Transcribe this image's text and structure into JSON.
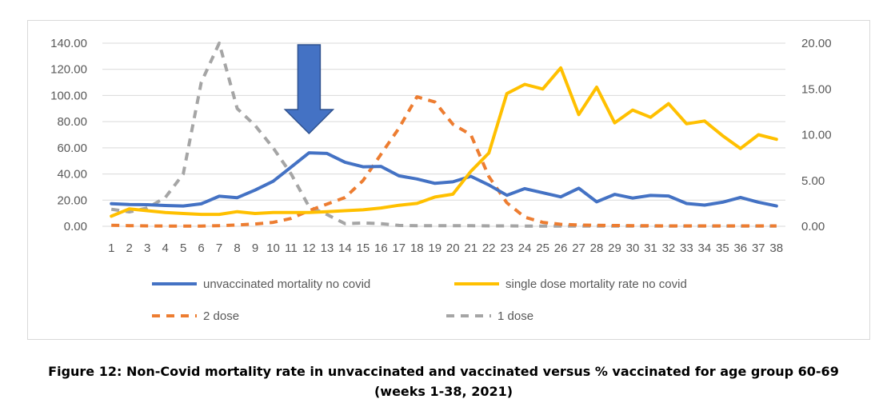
{
  "chart_data": {
    "type": "line",
    "x": [
      1,
      2,
      3,
      4,
      5,
      6,
      7,
      8,
      9,
      10,
      11,
      12,
      13,
      14,
      15,
      16,
      17,
      18,
      19,
      20,
      21,
      22,
      23,
      24,
      25,
      26,
      27,
      28,
      29,
      30,
      31,
      32,
      33,
      34,
      35,
      36,
      37,
      38
    ],
    "y_left_ticks": [
      "0.00",
      "20.00",
      "40.00",
      "60.00",
      "80.00",
      "100.00",
      "120.00",
      "140.00"
    ],
    "y_right_ticks": [
      "0.00",
      "5.00",
      "10.00",
      "15.00",
      "20.00"
    ],
    "ylim_left": [
      0,
      140
    ],
    "ylim_right": [
      0,
      20
    ],
    "grid": true,
    "legend_placement": "bottom",
    "series": [
      {
        "name": "unvaccinated mortality no covid",
        "axis": "left",
        "color": "#4472C4",
        "dash": "solid",
        "values": [
          17.3,
          16.7,
          16.5,
          15.9,
          15.5,
          17.2,
          23,
          21.9,
          27.7,
          34.4,
          45.3,
          56.2,
          55.7,
          49,
          45.5,
          45.8,
          38.6,
          36.2,
          32.8,
          34,
          38.2,
          31.6,
          23.7,
          28.8,
          25.6,
          22.5,
          29.1,
          18.7,
          24.4,
          21.6,
          23.6,
          23.2,
          17.4,
          16.2,
          18.4,
          22.1,
          18.4,
          15.5
        ]
      },
      {
        "name": "single dose mortality rate no covid",
        "axis": "right",
        "color": "#FFC000",
        "dash": "solid",
        "values": [
          1.1,
          1.9,
          1.7,
          1.5,
          1.4,
          1.3,
          1.3,
          1.6,
          1.4,
          1.5,
          1.5,
          1.5,
          1.6,
          1.7,
          1.8,
          2.0,
          2.3,
          2.5,
          3.2,
          3.5,
          6.0,
          8.0,
          14.5,
          15.5,
          15.0,
          17.3,
          12.2,
          15.2,
          11.3,
          12.7,
          11.9,
          13.4,
          11.2,
          11.5,
          9.9,
          8.5,
          10.0,
          9.5
        ]
      },
      {
        "name": "2 dose",
        "axis": "left",
        "color": "#ED7D31",
        "dash": "dashed",
        "values": [
          0.8,
          0.5,
          0.3,
          0.2,
          0.2,
          0.2,
          0.5,
          1.0,
          1.8,
          3.0,
          6.0,
          12.0,
          17.0,
          22.0,
          35.0,
          55.0,
          75.0,
          99.0,
          95.0,
          78.0,
          70.0,
          38.0,
          18.0,
          7.0,
          3.0,
          1.5,
          1.0,
          0.8,
          0.6,
          0.5,
          0.4,
          0.3,
          0.3,
          0.3,
          0.3,
          0.3,
          0.3,
          0.3
        ]
      },
      {
        "name": "1 dose",
        "axis": "left",
        "color": "#A5A5A5",
        "dash": "dashed",
        "values": [
          13.0,
          11.0,
          14.0,
          22.0,
          40.0,
          110.0,
          140.0,
          90.0,
          77.0,
          60.0,
          40.0,
          15.0,
          9.0,
          2.0,
          2.5,
          2.0,
          0.7,
          0.5,
          0.5,
          0.4,
          0.4,
          0.3,
          0.3,
          0.2,
          0.2,
          0.2,
          0.2,
          0.2,
          0.2,
          0.2,
          0.2,
          0.2,
          0.2,
          0.2,
          0.2,
          0.2,
          0.2,
          0.2
        ]
      }
    ],
    "annotations": [
      {
        "type": "arrow",
        "direction": "down",
        "at_x": 12,
        "color": "#4472C4"
      }
    ]
  },
  "caption": {
    "line1": "Figure 12: Non-Covid mortality rate in unvaccinated and vaccinated versus % vaccinated for age group 60-69",
    "line2": "(weeks 1-38, 2021)"
  }
}
